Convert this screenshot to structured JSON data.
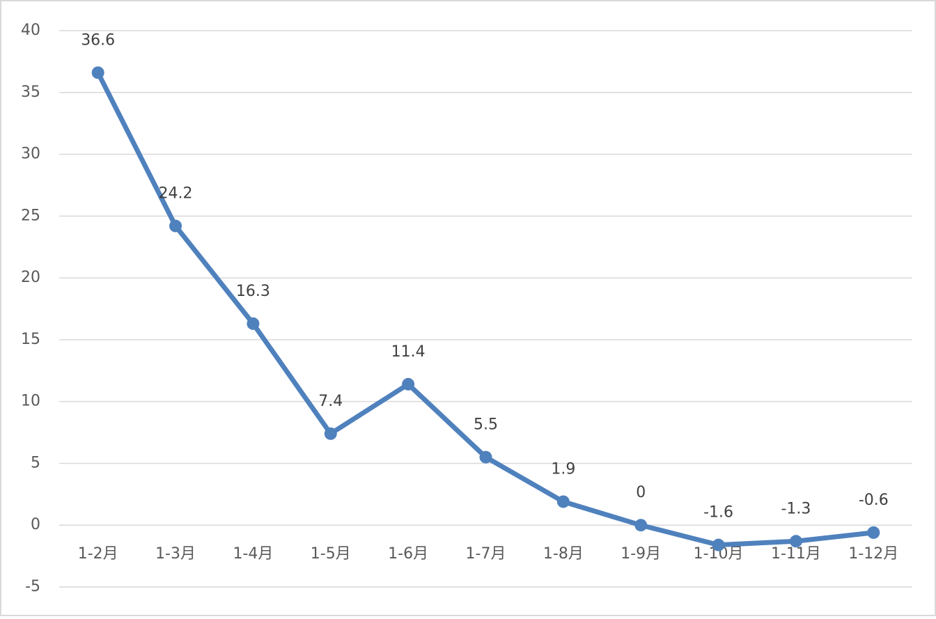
{
  "chart_data": {
    "type": "line",
    "categories": [
      "1-2月",
      "1-3月",
      "1-4月",
      "1-5月",
      "1-6月",
      "1-7月",
      "1-8月",
      "1-9月",
      "1-10月",
      "1-11月",
      "1-12月"
    ],
    "values": [
      36.6,
      24.2,
      16.3,
      7.4,
      11.4,
      5.5,
      1.9,
      0,
      -1.6,
      -1.3,
      -0.6
    ],
    "color": "#4f81bd",
    "ylim": [
      -5,
      40
    ],
    "yticks": [
      -5,
      0,
      5,
      10,
      15,
      20,
      25,
      30,
      35,
      40
    ],
    "grid": true
  }
}
